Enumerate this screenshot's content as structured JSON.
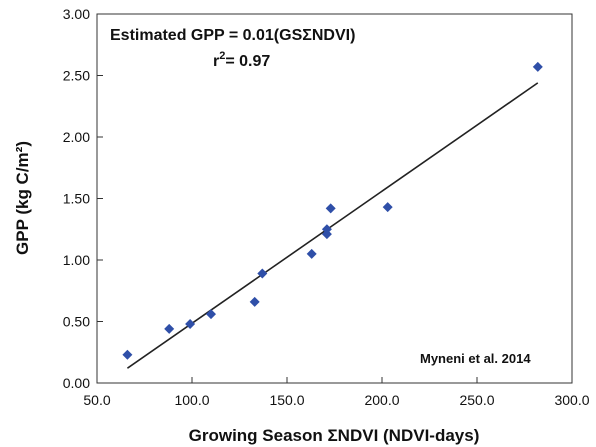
{
  "chart_data": {
    "type": "scatter",
    "xlabel": "Growing Season ΣNDVI (NDVI-days)",
    "ylabel": "GPP (kg C/m²)",
    "xlim": [
      50,
      300
    ],
    "ylim": [
      0,
      3
    ],
    "xticks": [
      "50.0",
      "100.0",
      "150.0",
      "200.0",
      "250.0",
      "300.0"
    ],
    "yticks": [
      "0.00",
      "0.50",
      "1.00",
      "1.50",
      "2.00",
      "2.50",
      "3.00"
    ],
    "grid": false,
    "series": [
      {
        "marker": "diamond",
        "color": "#2f4fa8",
        "points": [
          {
            "x": 66,
            "y": 0.23
          },
          {
            "x": 88,
            "y": 0.44
          },
          {
            "x": 99,
            "y": 0.48
          },
          {
            "x": 110,
            "y": 0.56
          },
          {
            "x": 133,
            "y": 0.66
          },
          {
            "x": 137,
            "y": 0.89
          },
          {
            "x": 163,
            "y": 1.05
          },
          {
            "x": 171,
            "y": 1.21
          },
          {
            "x": 171,
            "y": 1.25
          },
          {
            "x": 173,
            "y": 1.42
          },
          {
            "x": 203,
            "y": 1.43
          },
          {
            "x": 282,
            "y": 2.57
          }
        ]
      }
    ],
    "fit_line": {
      "x": [
        66,
        282
      ],
      "y": [
        0.12,
        2.44
      ],
      "color": "#222222"
    },
    "annotations": {
      "equation": "Estimated GPP = 0.01(GSΣNDVI)",
      "r2_label": "r",
      "r2_sup": "2",
      "r2_value": "= 0.97",
      "source": "Myneni et al. 2014"
    }
  }
}
